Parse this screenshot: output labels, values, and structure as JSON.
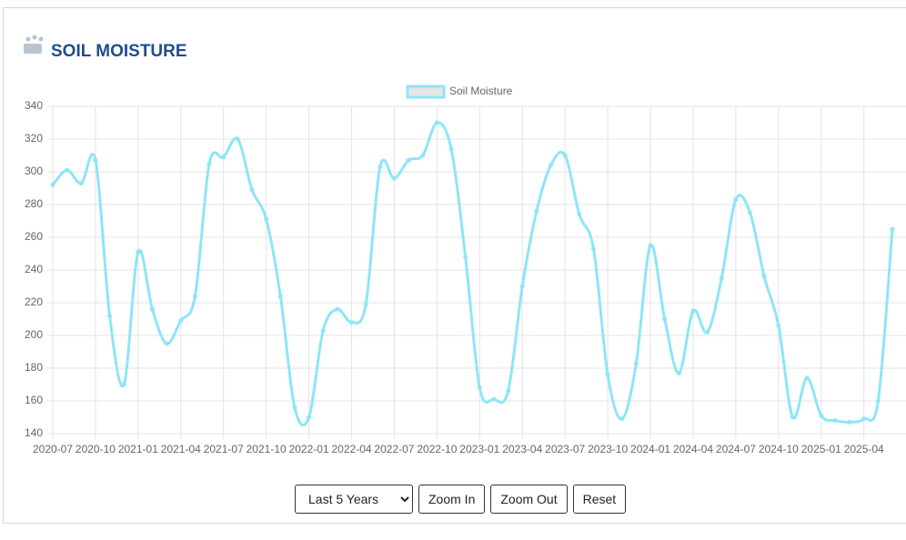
{
  "chart_data": {
    "type": "line",
    "title": "SOIL MOISTURE",
    "categories": [
      "2020-07",
      null,
      null,
      "2020-10",
      null,
      null,
      "2021-01",
      null,
      null,
      "2021-04",
      null,
      null,
      "2021-07",
      null,
      null,
      "2021-10",
      null,
      null,
      "2022-01",
      null,
      null,
      "2022-04",
      null,
      null,
      "2022-07",
      null,
      null,
      "2022-10",
      null,
      null,
      "2023-01",
      null,
      null,
      "2023-04",
      null,
      null,
      "2023-07",
      null,
      null,
      "2023-10",
      null,
      null,
      "2024-01",
      null,
      null,
      "2024-04",
      null,
      null,
      "2024-07",
      null,
      null,
      "2024-10",
      null,
      null,
      "2025-01",
      null,
      null,
      "2025-04",
      null,
      null
    ],
    "series": [
      {
        "name": "Soil Moisture",
        "color": "#8ee5f7",
        "values": [
          292,
          301,
          293,
          307,
          212,
          170,
          251,
          216,
          195,
          209,
          224,
          305,
          309,
          320,
          289,
          271,
          224,
          156,
          150,
          203,
          216,
          208,
          219,
          303,
          296,
          307,
          310,
          330,
          314,
          248,
          168,
          161,
          166,
          230,
          276,
          304,
          310,
          274,
          253,
          176,
          149,
          183,
          255,
          210,
          177,
          215,
          202,
          235,
          283,
          275,
          236,
          206,
          150,
          174,
          151,
          148,
          147,
          149,
          160,
          265
        ]
      }
    ],
    "ylim": [
      140,
      340
    ],
    "yticks": [
      140,
      160,
      180,
      200,
      220,
      240,
      260,
      280,
      300,
      320,
      340
    ],
    "grid": true,
    "legend": "top"
  },
  "controls": {
    "range": "Last 5 Years",
    "zoom_in": "Zoom In",
    "zoom_out": "Zoom Out",
    "reset": "Reset"
  }
}
